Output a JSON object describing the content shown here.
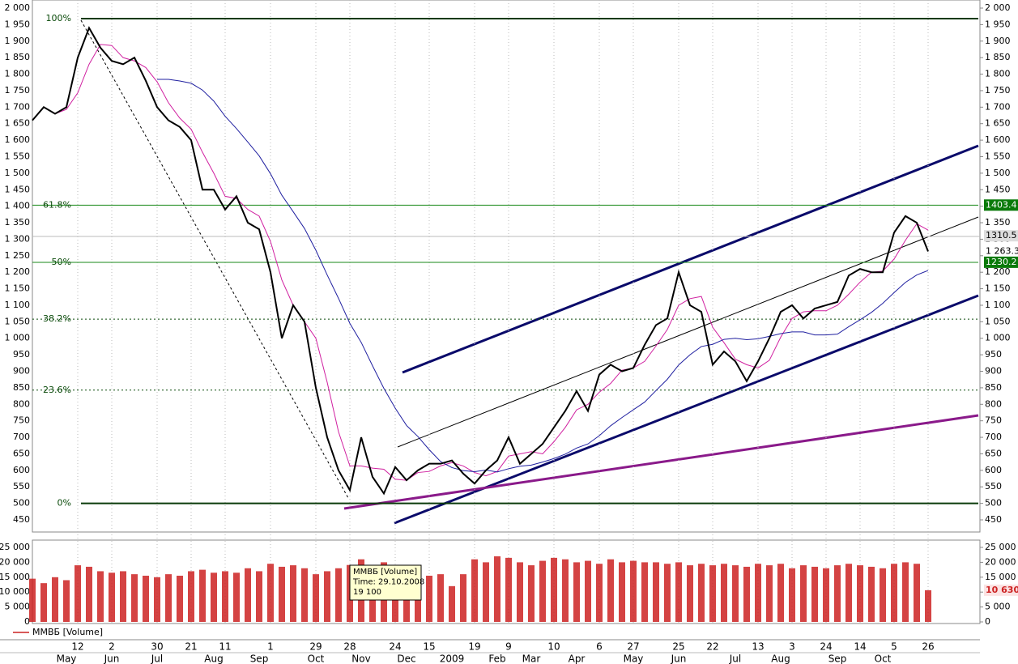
{
  "chart_data": [
    {
      "type": "line",
      "categories": [
        null,
        null,
        null,
        null,
        "12",
        null,
        null,
        "2",
        null,
        null,
        null,
        "30",
        null,
        null,
        "21",
        null,
        null,
        "11",
        null,
        null,
        null,
        "1",
        null,
        null,
        null,
        "29",
        null,
        null,
        "28",
        null,
        null,
        null,
        "24",
        null,
        null,
        "15",
        null,
        null,
        null,
        "19",
        null,
        null,
        "9",
        null,
        null,
        null,
        "10",
        null,
        null,
        null,
        "6",
        null,
        null,
        "27",
        null,
        null,
        null,
        "25",
        null,
        null,
        "22",
        null,
        null,
        null,
        "13",
        null,
        null,
        "3",
        null,
        null,
        "24",
        null,
        null,
        "14",
        null,
        null,
        "5",
        null,
        null,
        "26"
      ],
      "months": [
        null,
        null,
        null,
        "May",
        null,
        null,
        null,
        "Jun",
        null,
        null,
        null,
        "Jul",
        null,
        null,
        null,
        null,
        "Aug",
        null,
        null,
        null,
        "Sep",
        null,
        null,
        null,
        null,
        "Oct",
        null,
        null,
        null,
        "Nov",
        null,
        null,
        null,
        "Dec",
        null,
        null,
        null,
        "2009",
        null,
        null,
        null,
        "Feb",
        null,
        null,
        "Mar",
        null,
        null,
        null,
        "Apr",
        null,
        null,
        null,
        null,
        "May",
        null,
        null,
        null,
        "Jun",
        null,
        null,
        null,
        null,
        "Jul",
        null,
        null,
        null,
        "Aug",
        null,
        null,
        null,
        null,
        "Sep",
        null,
        null,
        null,
        "Oct",
        null,
        null,
        null,
        null
      ],
      "series": [
        {
          "color": "#000000",
          "values": [
            1660,
            1700,
            1680,
            1700,
            1850,
            1940,
            1880,
            1840,
            1830,
            1850,
            1780,
            1700,
            1660,
            1640,
            1600,
            1450,
            1450,
            1390,
            1430,
            1350,
            1330,
            1200,
            1000,
            1100,
            1050,
            850,
            700,
            600,
            540,
            700,
            580,
            530,
            610,
            570,
            600,
            620,
            620,
            630,
            590,
            560,
            600,
            630,
            700,
            620,
            650,
            680,
            730,
            780,
            840,
            780,
            890,
            920,
            900,
            910,
            980,
            1040,
            1060,
            1200,
            1100,
            1080,
            920,
            960,
            930,
            870,
            930,
            1000,
            1080,
            1100,
            1060,
            1090,
            1100,
            1110,
            1190,
            1210,
            1200,
            1200,
            1320,
            1370,
            1350,
            1263
          ]
        }
      ],
      "ylim": [
        450,
        2000
      ],
      "yticks": [
        {
          "value": 2000,
          "label": "2 000"
        },
        {
          "value": 1950,
          "label": "1 950"
        },
        {
          "value": 1900,
          "label": "1 900"
        },
        {
          "value": 1850,
          "label": "1 850"
        },
        {
          "value": 1800,
          "label": "1 800"
        },
        {
          "value": 1750,
          "label": "1 750"
        },
        {
          "value": 1700,
          "label": "1 700"
        },
        {
          "value": 1650,
          "label": "1 650"
        },
        {
          "value": 1600,
          "label": "1 600"
        },
        {
          "value": 1550,
          "label": "1 550"
        },
        {
          "value": 1500,
          "label": "1 500"
        },
        {
          "value": 1450,
          "label": "1 450"
        },
        {
          "value": 1400,
          "label": "1 400"
        },
        {
          "value": 1350,
          "label": "1 350"
        },
        {
          "value": 1300,
          "label": "1 300"
        },
        {
          "value": 1250,
          "label": "1 250"
        },
        {
          "value": 1200,
          "label": "1 200"
        },
        {
          "value": 1150,
          "label": "1 150"
        },
        {
          "value": 1100,
          "label": "1 100"
        },
        {
          "value": 1050,
          "label": "1 050"
        },
        {
          "value": 1000,
          "label": "1 000"
        },
        950,
        900,
        850,
        800,
        750,
        700,
        650,
        600,
        550,
        500,
        450
      ],
      "fibonacci": [
        {
          "label": "100%",
          "value": 1968
        },
        {
          "label": "61.8%",
          "value": 1403
        },
        {
          "label": "50%",
          "value": 1230
        },
        {
          "label": "38.2%",
          "value": 1058
        },
        {
          "label": "23.6%",
          "value": 843
        },
        {
          "label": "0%",
          "value": 500
        }
      ],
      "price_labels": [
        {
          "value": 1403.4,
          "color": "#0a7a0a"
        },
        {
          "value": 1310.5,
          "color": "#dddddd"
        },
        {
          "value": 1263.3,
          "label": "1 263.3",
          "color": "#ffffff"
        },
        {
          "value": 1230.2,
          "color": "#0a7a0a"
        }
      ],
      "grid": true
    },
    {
      "type": "bar",
      "series": [
        {
          "name": "ММВБ [Volume]",
          "color": "#cc2222",
          "values": [
            14500,
            13000,
            15000,
            14000,
            19000,
            18500,
            17000,
            16500,
            17000,
            16000,
            15500,
            15000,
            16000,
            15500,
            17000,
            17500,
            16500,
            17000,
            16500,
            18000,
            17000,
            19500,
            18500,
            19000,
            18000,
            16000,
            17000,
            18000,
            19100,
            21000,
            19000,
            20000,
            19000,
            17000,
            16500,
            15500,
            16000,
            12000,
            16000,
            21000,
            20000,
            22000,
            21500,
            20000,
            19000,
            20500,
            21500,
            21000,
            20000,
            20500,
            19500,
            21000,
            20000,
            20500,
            20000,
            20000,
            19500,
            20000,
            19000,
            19500,
            19000,
            19500,
            19000,
            18500,
            19500,
            19000,
            19500,
            18000,
            19000,
            18500,
            18000,
            19000,
            19500,
            19000,
            18500,
            18000,
            19500,
            20000,
            19500,
            10630
          ]
        }
      ],
      "ylim": [
        0,
        25000
      ],
      "yticks": [
        0,
        {
          "value": 5000,
          "label": "5 000"
        },
        {
          "value": 10000,
          "label": "10 000"
        },
        {
          "value": 15000,
          "label": "15 000"
        },
        {
          "value": 20000,
          "label": "20 000"
        },
        {
          "value": 25000,
          "label": "25 000"
        }
      ],
      "last_label": {
        "value": 10630,
        "label": "10 630"
      },
      "tooltip": [
        "ММВБ [Volume]",
        "Time: 29.10.2008",
        "19 100"
      ]
    }
  ]
}
